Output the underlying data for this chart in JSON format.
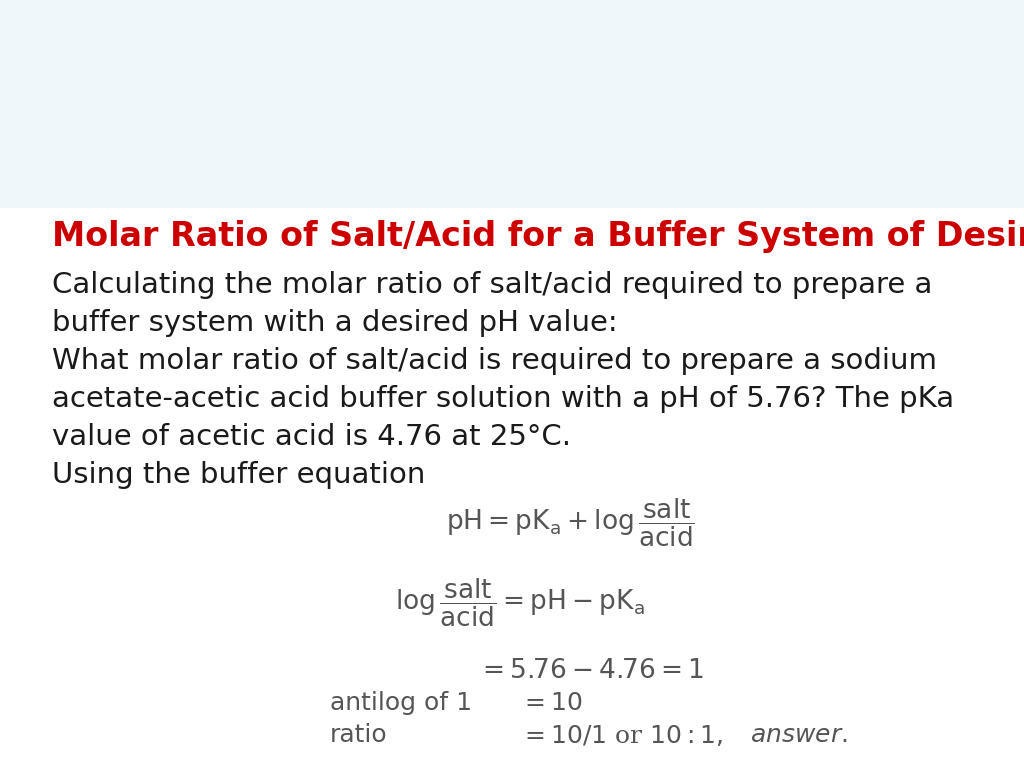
{
  "title": "Molar Ratio of Salt/Acid for a Buffer System of Desired pH",
  "title_color": "#CC0000",
  "body_color": "#1a1a1a",
  "eq_color": "#555555",
  "background_color": "#f0f8fa",
  "body_lines": [
    "Calculating the molar ratio of salt/acid required to prepare a",
    "buffer system with a desired pH value:",
    "What molar ratio of salt/acid is required to prepare a sodium",
    "acetate-acetic acid buffer solution with a pH of 5.76? The pKa",
    "value of acetic acid is 4.76 at 25°C.",
    "Using the buffer equation"
  ],
  "title_fontsize": 24,
  "body_fontsize": 21,
  "eq_fontsize": 19,
  "wave_top_color": "#b8e8f0",
  "wave_mid_color": "#5bbdd4",
  "wave_light_color": "#d8f0f8",
  "wave_line_color": "#3399bb"
}
